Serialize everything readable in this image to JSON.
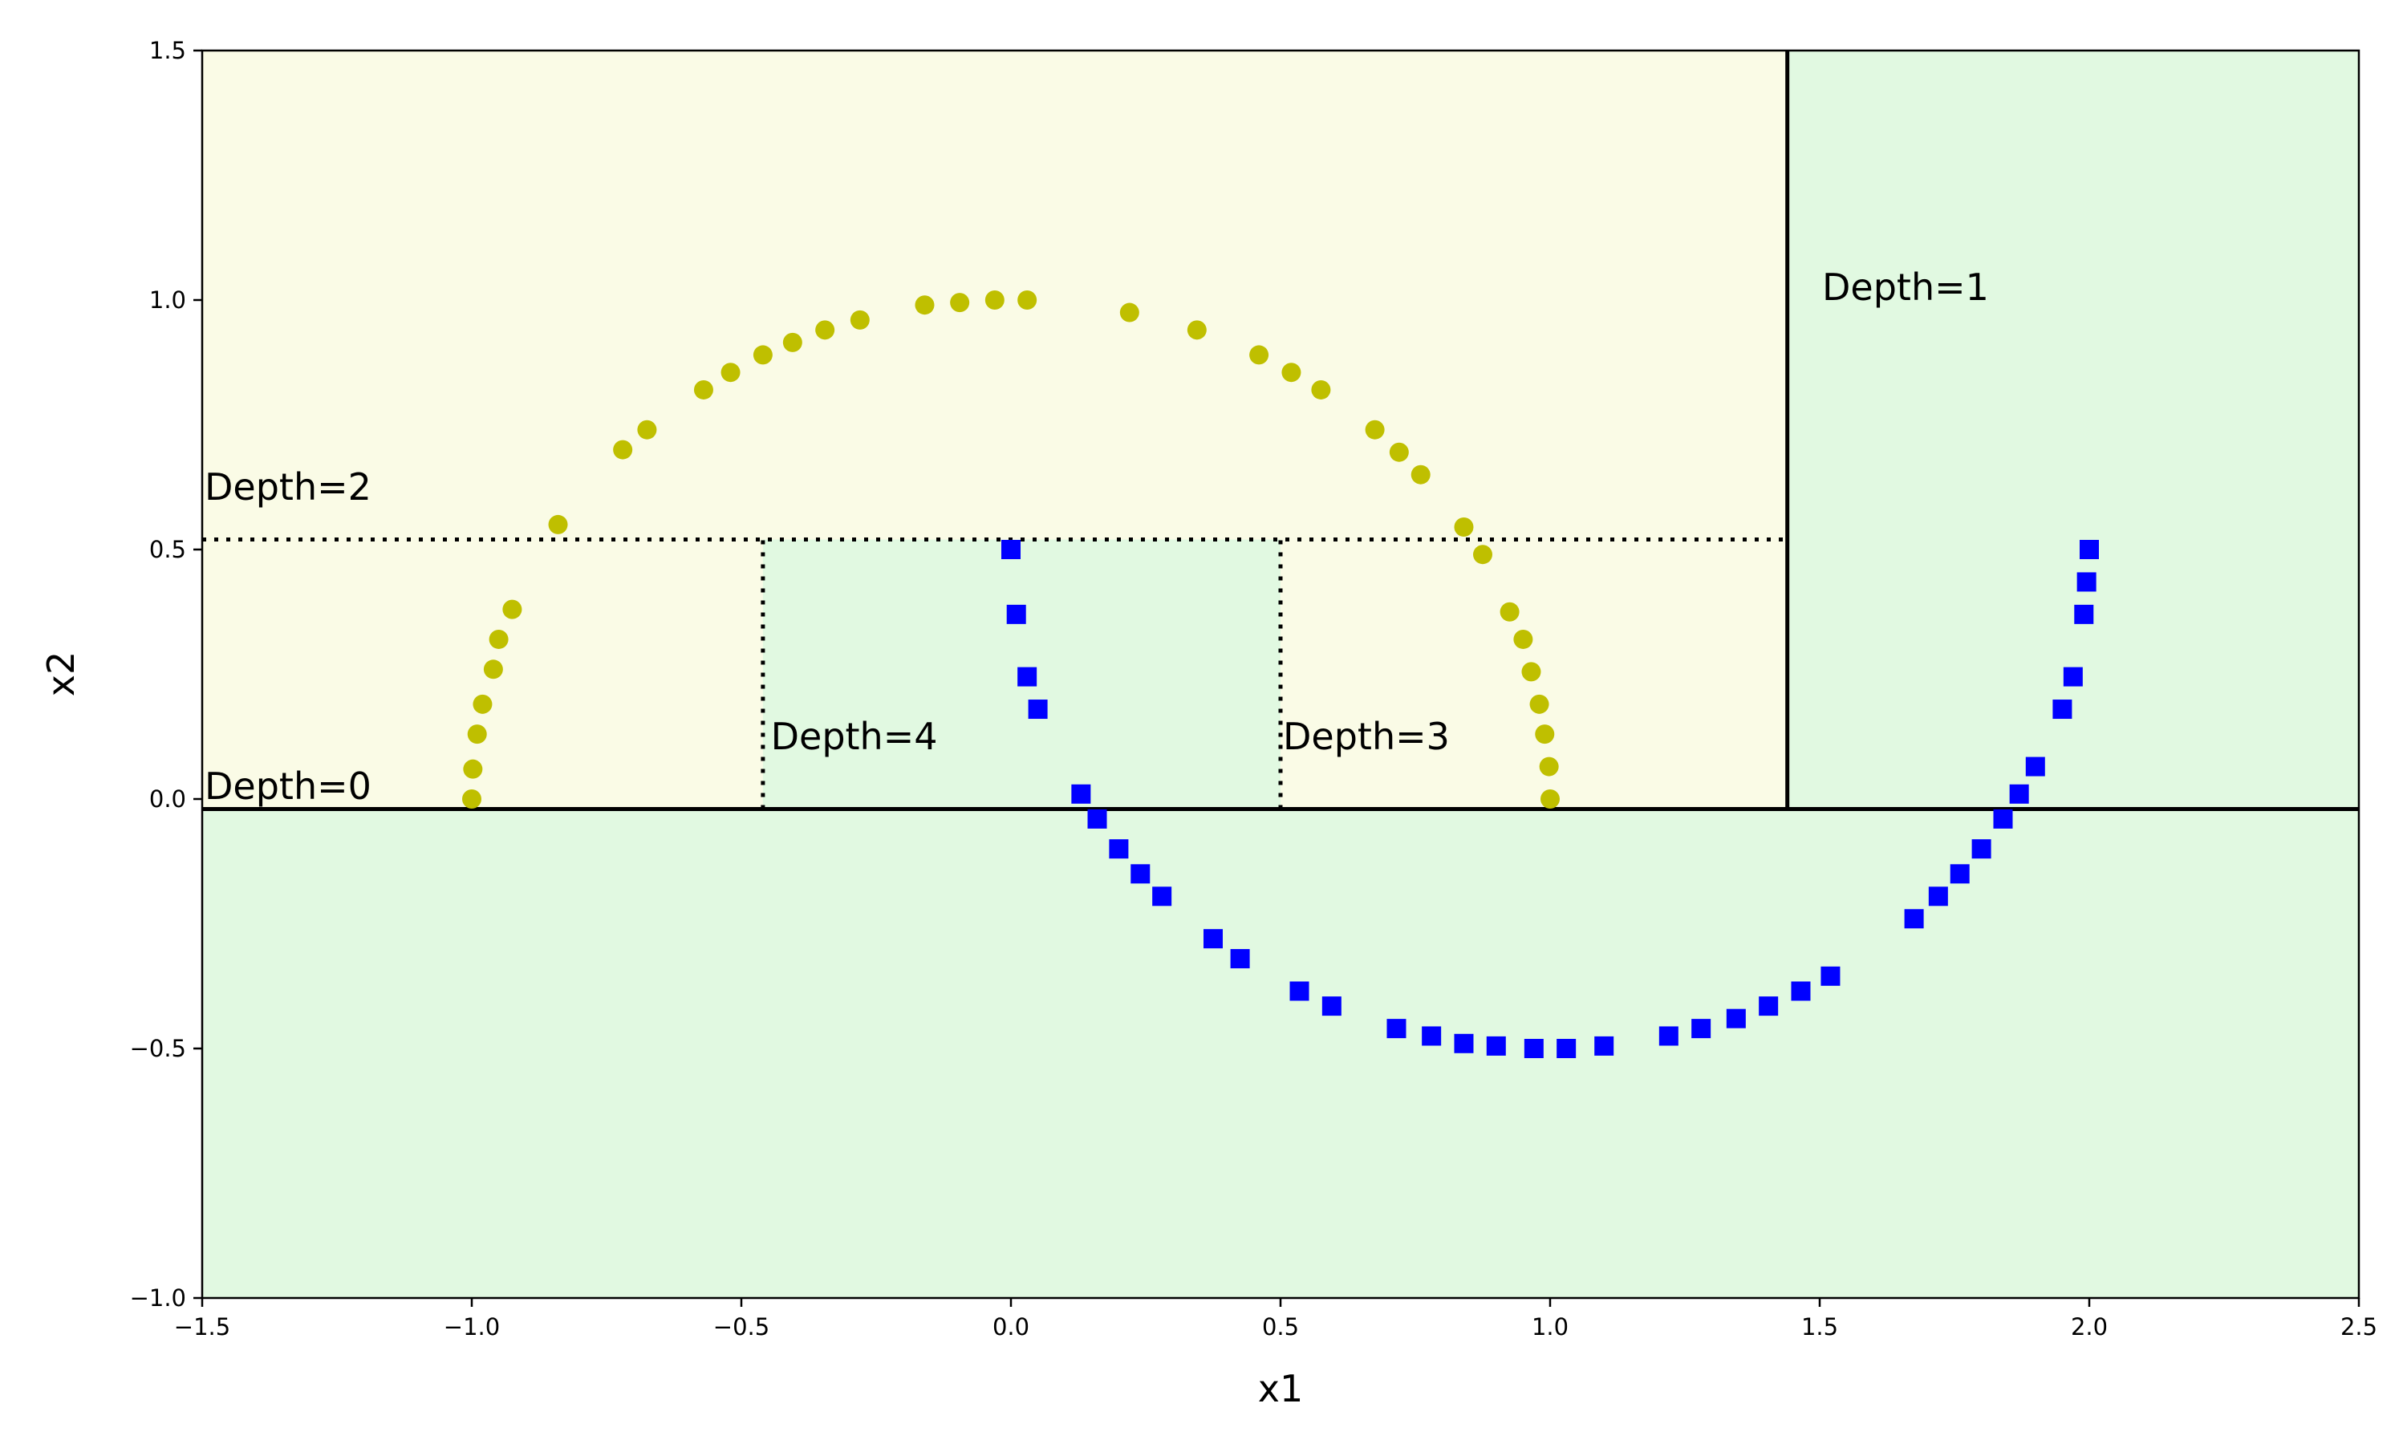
{
  "chart_data": {
    "type": "scatter",
    "title": "",
    "xlabel": "x1",
    "ylabel": "x2",
    "xlim": [
      -1.5,
      2.5
    ],
    "ylim": [
      -1.0,
      1.5
    ],
    "grid": false,
    "legend": "none",
    "x_ticks": [
      "−1.5",
      "−1.0",
      "−0.5",
      "0.0",
      "0.5",
      "1.0",
      "1.5",
      "2.0",
      "2.5"
    ],
    "y_ticks": [
      "−1.0",
      "−0.5",
      "0.0",
      "0.5",
      "1.0",
      "1.5"
    ],
    "regions": [
      {
        "x": [
          -1.5,
          1.44
        ],
        "y": [
          -0.02,
          1.5
        ],
        "class": "yellow",
        "color": "#fafbe6"
      },
      {
        "x": [
          1.44,
          2.5
        ],
        "y": [
          -0.02,
          1.5
        ],
        "class": "green",
        "color": "#e1f9e1"
      },
      {
        "x": [
          -1.5,
          2.5
        ],
        "y": [
          -1.0,
          -0.02
        ],
        "class": "green",
        "color": "#e1f9e1"
      },
      {
        "x": [
          -0.46,
          0.5
        ],
        "y": [
          -0.02,
          0.52
        ],
        "class": "green",
        "color": "#e1f9e1"
      }
    ],
    "boundaries": [
      {
        "label": "Depth=0",
        "orientation": "horizontal",
        "value": -0.02,
        "from": -1.5,
        "to": 2.5,
        "style": "solid"
      },
      {
        "label": "Depth=1",
        "orientation": "vertical",
        "value": 1.44,
        "from": -0.02,
        "to": 1.5,
        "style": "solid"
      },
      {
        "label": "Depth=2",
        "orientation": "horizontal",
        "value": 0.52,
        "from": -1.5,
        "to": 1.44,
        "style": "dotted"
      },
      {
        "label": "Depth=3",
        "orientation": "vertical",
        "value": 0.5,
        "from": -0.02,
        "to": 0.52,
        "style": "dotted"
      },
      {
        "label": "Depth=4",
        "orientation": "vertical",
        "value": -0.46,
        "from": -0.02,
        "to": 0.52,
        "style": "dotted"
      }
    ],
    "annotations": [
      {
        "text": "Depth=0",
        "x": -1.5,
        "y": 0.0
      },
      {
        "text": "Depth=1",
        "x": 1.5,
        "y": 1.0
      },
      {
        "text": "Depth=2",
        "x": -1.5,
        "y": 0.6
      },
      {
        "text": "Depth=3",
        "x": 0.5,
        "y": 0.1
      },
      {
        "text": "Depth=4",
        "x": -0.45,
        "y": 0.1
      }
    ],
    "series": [
      {
        "class": "0",
        "marker": "circle",
        "color": "#bfbf00",
        "points": [
          [
            -1.0,
            0.0
          ],
          [
            -0.998,
            0.06
          ],
          [
            -0.99,
            0.13
          ],
          [
            -0.98,
            0.19
          ],
          [
            -0.96,
            0.26
          ],
          [
            -0.95,
            0.32
          ],
          [
            -0.925,
            0.38
          ],
          [
            -0.84,
            0.55
          ],
          [
            -0.72,
            0.7
          ],
          [
            -0.675,
            0.74
          ],
          [
            -0.57,
            0.82
          ],
          [
            -0.52,
            0.855
          ],
          [
            -0.46,
            0.89
          ],
          [
            -0.405,
            0.915
          ],
          [
            -0.345,
            0.94
          ],
          [
            -0.28,
            0.96
          ],
          [
            -0.16,
            0.99
          ],
          [
            -0.095,
            0.995
          ],
          [
            -0.03,
            1.0
          ],
          [
            0.03,
            1.0
          ],
          [
            0.22,
            0.975
          ],
          [
            0.345,
            0.94
          ],
          [
            0.46,
            0.89
          ],
          [
            0.52,
            0.855
          ],
          [
            0.575,
            0.82
          ],
          [
            0.675,
            0.74
          ],
          [
            0.72,
            0.695
          ],
          [
            0.76,
            0.65
          ],
          [
            0.84,
            0.545
          ],
          [
            0.875,
            0.49
          ],
          [
            0.925,
            0.375
          ],
          [
            0.95,
            0.32
          ],
          [
            0.965,
            0.255
          ],
          [
            0.98,
            0.19
          ],
          [
            0.99,
            0.13
          ],
          [
            0.998,
            0.065
          ],
          [
            1.0,
            0.0
          ]
        ]
      },
      {
        "class": "1",
        "marker": "square",
        "color": "#0000ff",
        "points": [
          [
            0.0,
            0.5
          ],
          [
            0.01,
            0.37
          ],
          [
            0.03,
            0.245
          ],
          [
            0.05,
            0.18
          ],
          [
            0.13,
            0.01
          ],
          [
            0.16,
            -0.04
          ],
          [
            0.2,
            -0.1
          ],
          [
            0.24,
            -0.15
          ],
          [
            0.28,
            -0.195
          ],
          [
            0.375,
            -0.28
          ],
          [
            0.425,
            -0.32
          ],
          [
            0.535,
            -0.385
          ],
          [
            0.595,
            -0.415
          ],
          [
            0.715,
            -0.46
          ],
          [
            0.78,
            -0.475
          ],
          [
            0.84,
            -0.49
          ],
          [
            0.9,
            -0.495
          ],
          [
            0.97,
            -0.5
          ],
          [
            1.03,
            -0.5
          ],
          [
            1.1,
            -0.495
          ],
          [
            1.22,
            -0.475
          ],
          [
            1.28,
            -0.46
          ],
          [
            1.345,
            -0.44
          ],
          [
            1.405,
            -0.415
          ],
          [
            1.465,
            -0.385
          ],
          [
            1.52,
            -0.355
          ],
          [
            1.675,
            -0.24
          ],
          [
            1.72,
            -0.195
          ],
          [
            1.76,
            -0.15
          ],
          [
            1.8,
            -0.1
          ],
          [
            1.84,
            -0.04
          ],
          [
            1.87,
            0.01
          ],
          [
            1.9,
            0.065
          ],
          [
            1.95,
            0.18
          ],
          [
            1.97,
            0.245
          ],
          [
            1.99,
            0.37
          ],
          [
            1.995,
            0.435
          ],
          [
            2.0,
            0.5
          ]
        ]
      }
    ]
  }
}
